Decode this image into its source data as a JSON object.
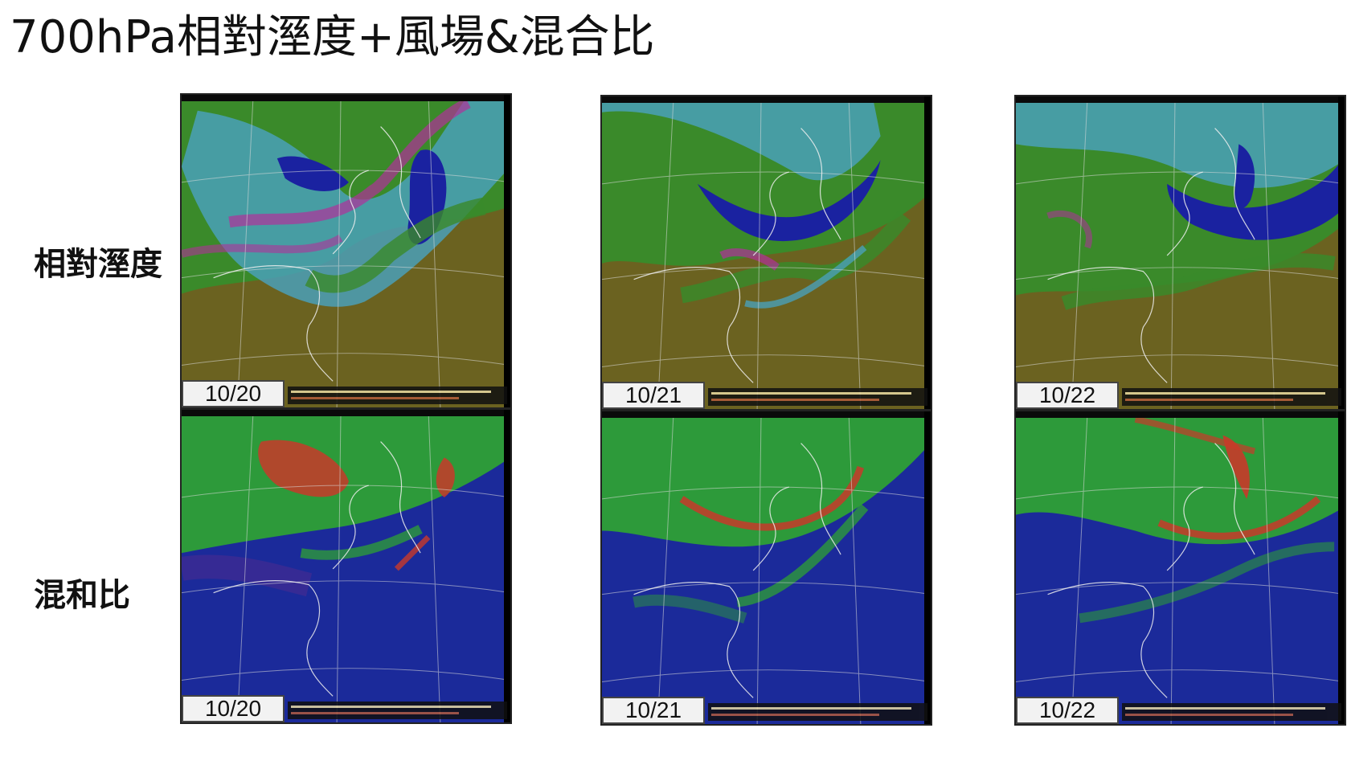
{
  "title": "700hPa相對溼度+風場&混合比",
  "rows": [
    {
      "label": "相對溼度"
    },
    {
      "label": "混和比"
    }
  ],
  "panels": [
    {
      "date": "10/20"
    },
    {
      "date": "10/21"
    },
    {
      "date": "10/22"
    },
    {
      "date": "10/20"
    },
    {
      "date": "10/21"
    },
    {
      "date": "10/22"
    }
  ],
  "colors": {
    "rh_dry": "#6b6220",
    "rh_mid": "#3a8a2a",
    "rh_moist": "#4aa0b8",
    "rh_wet": "#1a22a0",
    "rh_magenta": "#b0309a",
    "mr_low": "#1b2a9a",
    "mr_mid": "#2d9a3a",
    "mr_high": "#c83a2a"
  }
}
